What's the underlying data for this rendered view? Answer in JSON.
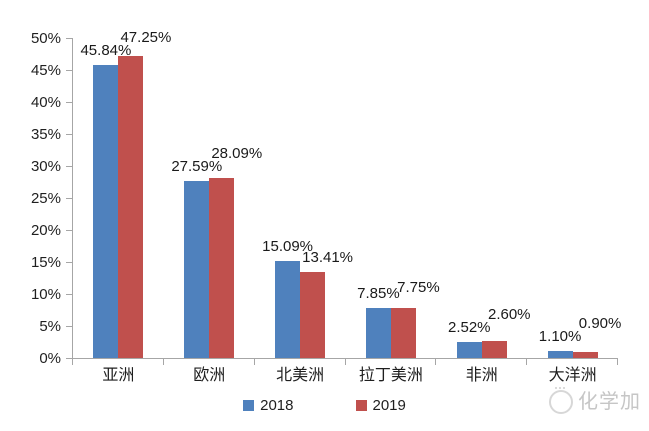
{
  "chart_data": {
    "type": "bar",
    "title": "",
    "categories": [
      "亚洲",
      "欧洲",
      "北美洲",
      "拉丁美洲",
      "非洲",
      "大洋洲"
    ],
    "series": [
      {
        "name": "2018",
        "color": "#4F81BD",
        "values": [
          45.84,
          27.59,
          15.09,
          7.85,
          2.52,
          1.1
        ],
        "labels": [
          "45.84%",
          "27.59%",
          "15.09%",
          "7.85%",
          "2.52%",
          "1.10%"
        ]
      },
      {
        "name": "2019",
        "color": "#C0504D",
        "values": [
          47.25,
          28.09,
          13.41,
          7.75,
          2.6,
          0.9
        ],
        "labels": [
          "47.25%",
          "28.09%",
          "13.41%",
          "7.75%",
          "2.60%",
          "0.90%"
        ]
      }
    ],
    "xlabel": "",
    "ylabel": "",
    "ylim": [
      0,
      50
    ],
    "y_tick_step": 5,
    "y_tick_labels": [
      "0%",
      "5%",
      "10%",
      "15%",
      "20%",
      "25%",
      "30%",
      "35%",
      "40%",
      "45%",
      "50%"
    ],
    "grid": false,
    "legend_position": "bottom",
    "legend_entries": [
      "2018",
      "2019"
    ]
  },
  "watermark": {
    "text": "化学加",
    "icon": "chemistry-plus-logo-icon"
  },
  "colors": {
    "series_2018": "#4F81BD",
    "series_2019": "#C0504D",
    "axis": "#A6A6A6",
    "text": "#1f1f1f",
    "watermark_text": "#c6c6c6",
    "background": "#FFFFFF"
  }
}
